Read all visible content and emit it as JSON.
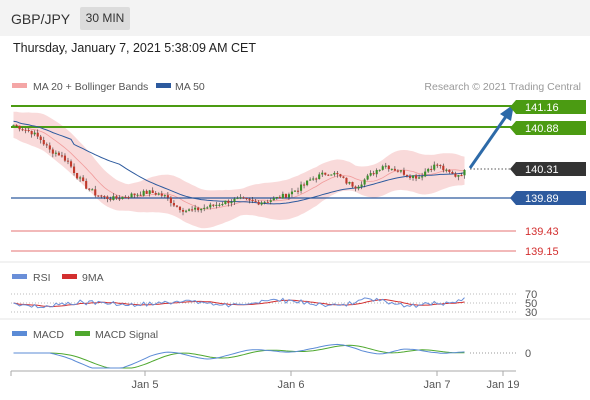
{
  "header": {
    "symbol": "GBP/JPY",
    "timeframe": "30 MIN"
  },
  "datetime": "Thursday, January 7, 2021 5:38:09 AM CET",
  "legend": {
    "bb": "MA 20 + Bollinger Bands",
    "ma50": "MA 50",
    "credit": "Research © 2021 Trading Central"
  },
  "colors": {
    "up": "#3a8f2a",
    "down": "#c0392b",
    "bb": "#f4a6a6",
    "ma50": "#2d5a9e",
    "resistance": "#4b9b12",
    "support": "#e57373",
    "current": "#333333",
    "target_arrow": "#2d6aa8",
    "rsi": "#6a8fd8",
    "rsi_ma": "#d32f2f",
    "macd": "#5b8bd6",
    "macd_signal": "#4fa82e"
  },
  "chart_data": [
    {
      "type": "candlestick",
      "description_points": "approximate close path",
      "ylim": [
        139.0,
        141.3
      ],
      "x_ticks": [
        "Jan 5",
        "Jan 6",
        "Jan 7",
        "Jan 19"
      ],
      "close_path": [
        140.9,
        140.85,
        140.8,
        140.7,
        140.55,
        140.5,
        140.4,
        140.2,
        140.05,
        139.95,
        139.9,
        139.88,
        139.9,
        139.93,
        139.95,
        139.97,
        139.95,
        139.9,
        139.78,
        139.72,
        139.72,
        139.75,
        139.78,
        139.82,
        139.85,
        139.87,
        139.85,
        139.83,
        139.85,
        139.88,
        139.92,
        139.98,
        140.05,
        140.15,
        140.2,
        140.25,
        140.2,
        140.1,
        140.05,
        140.15,
        140.25,
        140.35,
        140.3,
        140.25,
        140.2,
        140.18,
        140.3,
        140.35,
        140.25,
        140.2,
        140.25
      ],
      "levels": [
        {
          "value": 141.16,
          "label": "141.16",
          "kind": "resistance"
        },
        {
          "value": 140.88,
          "label": "140.88",
          "kind": "resistance"
        },
        {
          "value": 140.31,
          "label": "140.31",
          "kind": "current"
        },
        {
          "value": 139.89,
          "label": "139.89",
          "kind": "pivot"
        },
        {
          "value": 139.43,
          "label": "139.43",
          "kind": "support"
        },
        {
          "value": 139.15,
          "label": "139.15",
          "kind": "support"
        }
      ]
    },
    {
      "type": "line",
      "title": "RSI",
      "series": [
        {
          "name": "RSI"
        },
        {
          "name": "9MA"
        }
      ],
      "levels": [
        "70",
        "50",
        "30"
      ]
    },
    {
      "type": "line",
      "title": "MACD",
      "series": [
        {
          "name": "MACD"
        },
        {
          "name": "MACD Signal"
        }
      ],
      "levels": [
        "0"
      ]
    }
  ],
  "rsi_legend": {
    "rsi": "RSI",
    "ma": "9MA"
  },
  "macd_legend": {
    "macd": "MACD",
    "signal": "MACD Signal"
  }
}
